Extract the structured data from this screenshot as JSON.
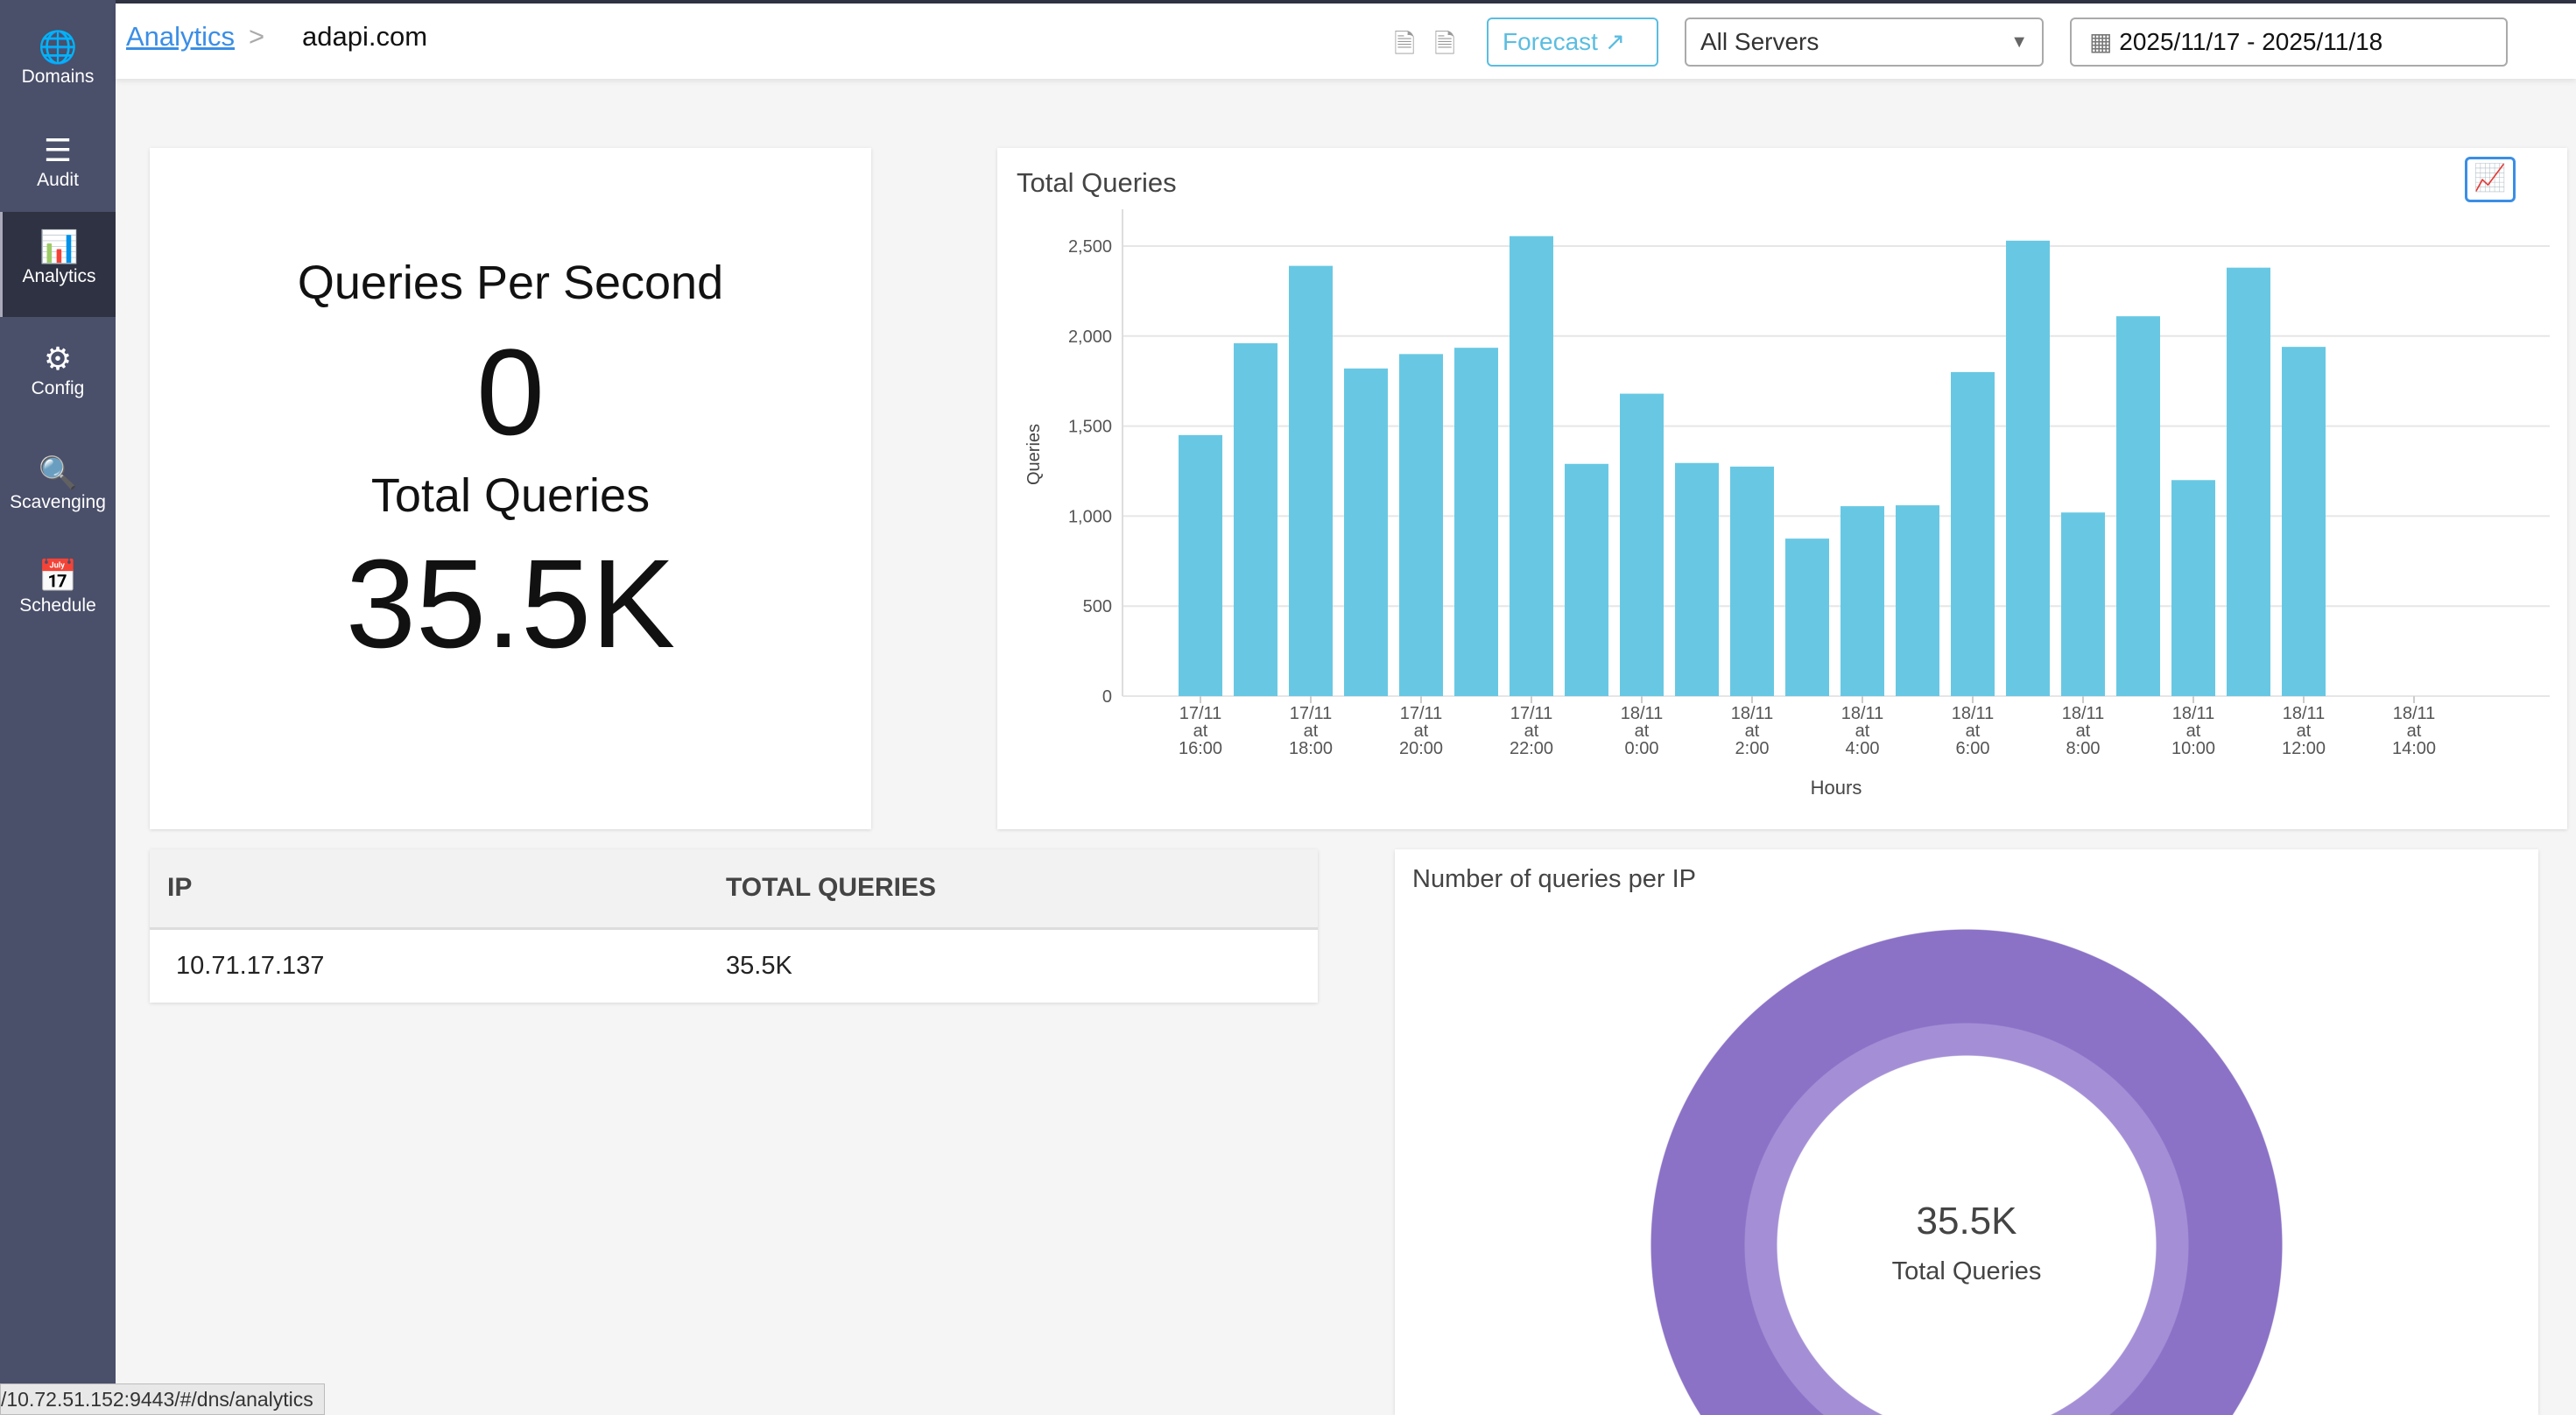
{
  "sidebar": {
    "items": [
      {
        "label": "Domains",
        "icon": "globe-com-icon"
      },
      {
        "label": "Audit",
        "icon": "audit-list-icon"
      },
      {
        "label": "Analytics",
        "icon": "bar-chart-icon",
        "active": true
      },
      {
        "label": "Config",
        "icon": "gears-icon"
      },
      {
        "label": "Scavenging",
        "icon": "document-search-icon"
      },
      {
        "label": "Schedule",
        "icon": "calendar-icon"
      }
    ]
  },
  "header": {
    "breadcrumb_link": "Analytics",
    "separator": ">",
    "domain": "adapi.com",
    "forecast_label": "Forecast",
    "server_select": "All Servers",
    "date_range": "2025/11/17 - 2025/11/18"
  },
  "stats": {
    "qps_label": "Queries Per Second",
    "qps_value": "0",
    "total_label": "Total Queries",
    "total_value": "35.5K"
  },
  "table": {
    "headers": [
      "IP",
      "TOTAL QUERIES"
    ],
    "rows": [
      [
        "10.71.17.137",
        "35.5K"
      ]
    ]
  },
  "donut": {
    "title": "Number of queries per IP",
    "center_value": "35.5K",
    "center_label": "Total Queries",
    "color": "#8b72c6",
    "inner_color": "#a48fd6"
  },
  "status_url": "/10.72.51.152:9443/#/dns/analytics",
  "chart_data": {
    "type": "bar",
    "title": "Total Queries",
    "xlabel": "Hours",
    "ylabel": "Queries",
    "ylim": [
      0,
      2500
    ],
    "grid": true,
    "color": "#68c8e3",
    "yticks": [
      "0",
      "500",
      "1,000",
      "1,500",
      "2,000",
      "2,500"
    ],
    "xticks": [
      "17/11|at|16:00",
      "17/11|at|18:00",
      "17/11|at|20:00",
      "17/11|at|22:00",
      "18/11|at|0:00",
      "18/11|at|2:00",
      "18/11|at|4:00",
      "18/11|at|6:00",
      "18/11|at|8:00",
      "18/11|at|10:00",
      "18/11|at|12:00",
      "18/11|at|14:00"
    ],
    "categories": [
      "17/11 16:00",
      "17/11 17:00",
      "17/11 18:00",
      "17/11 19:00",
      "17/11 20:00",
      "17/11 21:00",
      "17/11 22:00",
      "17/11 23:00",
      "18/11 0:00",
      "18/11 1:00",
      "18/11 2:00",
      "18/11 3:00",
      "18/11 4:00",
      "18/11 5:00",
      "18/11 6:00",
      "18/11 7:00",
      "18/11 8:00",
      "18/11 9:00",
      "18/11 10:00",
      "18/11 11:00",
      "18/11 12:00"
    ],
    "values": [
      1450,
      1960,
      2390,
      1820,
      1900,
      1935,
      2555,
      1290,
      1680,
      1295,
      1275,
      875,
      1055,
      1060,
      1800,
      2530,
      1020,
      2110,
      1200,
      2380,
      1940
    ]
  }
}
